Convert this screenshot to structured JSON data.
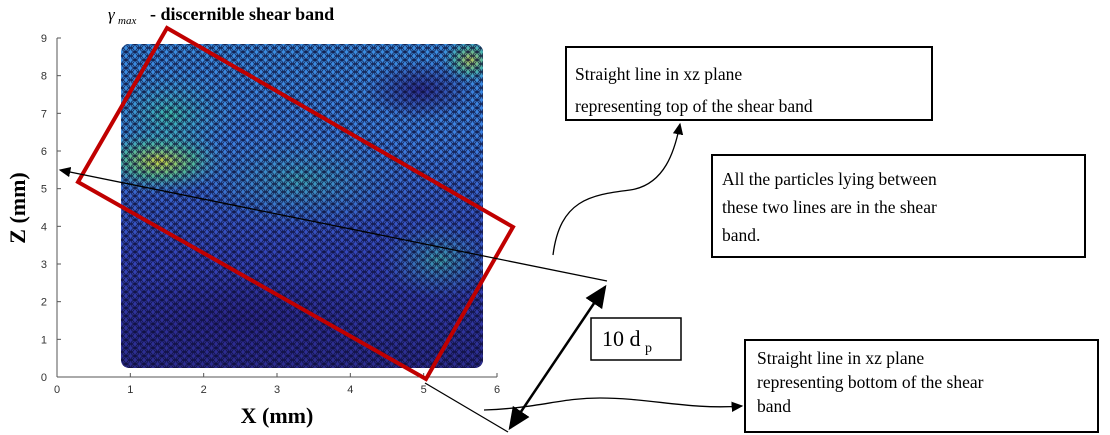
{
  "plot": {
    "title_symbol": "γ",
    "title_subscript": "max",
    "title_text": "- discernible shear band",
    "xlabel": "X (mm)",
    "zlabel": "Z (mm)",
    "xticks": [
      0,
      1,
      2,
      3,
      4,
      5,
      6
    ],
    "zticks": [
      0,
      1,
      2,
      3,
      4,
      5,
      6,
      7,
      8,
      9
    ]
  },
  "dimension": {
    "text": "10 d",
    "subscript": "p"
  },
  "annotations": [
    {
      "lines": [
        "Straight line in xz plane",
        "representing top of the shear band"
      ]
    },
    {
      "lines": [
        "All the particles lying between",
        "these two lines are in the shear",
        "band."
      ]
    },
    {
      "lines": [
        "Straight line in xz plane",
        "representing bottom of the shear",
        "band"
      ]
    }
  ]
}
